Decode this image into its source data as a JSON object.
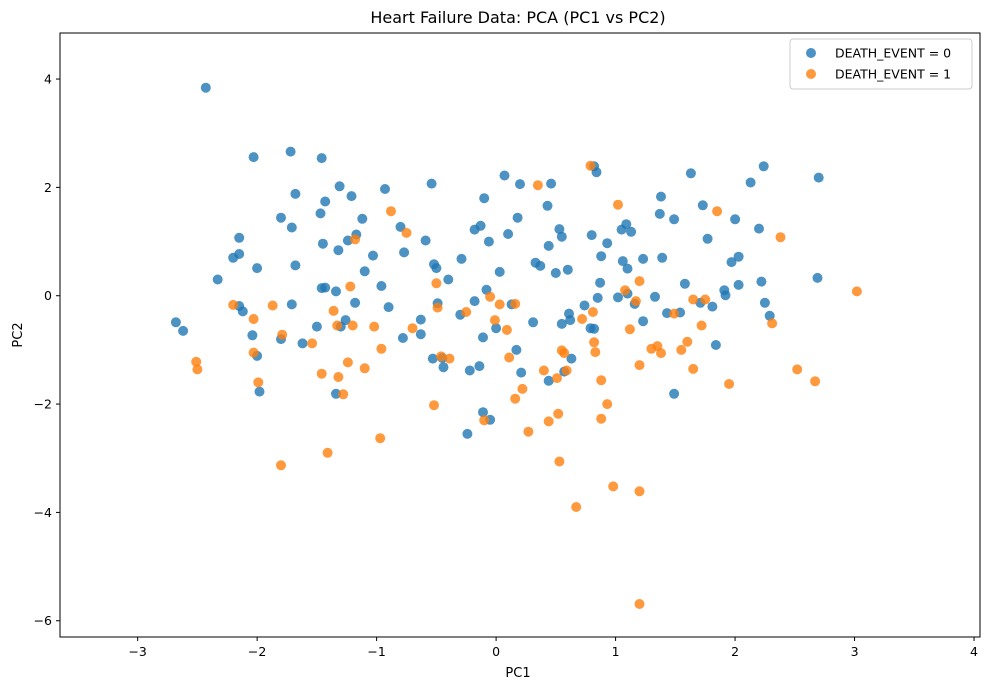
{
  "chart_data": {
    "type": "scatter",
    "title": "Heart Failure Data: PCA (PC1 vs PC2)",
    "xlabel": "PC1",
    "ylabel": "PC2",
    "xlim": [
      -3.65,
      4.05
    ],
    "ylim": [
      -6.3,
      4.85
    ],
    "x_ticks": [
      -3,
      -2,
      -1,
      0,
      1,
      2,
      3,
      4
    ],
    "y_ticks": [
      -6,
      -4,
      -2,
      0,
      2,
      4
    ],
    "grid": false,
    "legend_position": "top-right",
    "series": [
      {
        "name": "DEATH_EVENT = 0",
        "color": "#1f77b4",
        "points": [
          [
            -2.43,
            3.84
          ],
          [
            -2.03,
            2.56
          ],
          [
            -1.72,
            2.66
          ],
          [
            -1.46,
            2.54
          ],
          [
            -1.68,
            1.88
          ],
          [
            -1.31,
            2.02
          ],
          [
            -1.21,
            1.84
          ],
          [
            -0.93,
            1.97
          ],
          [
            -0.54,
            2.07
          ],
          [
            0.07,
            2.22
          ],
          [
            -0.1,
            1.8
          ],
          [
            0.2,
            2.06
          ],
          [
            0.46,
            2.07
          ],
          [
            0.82,
            2.39
          ],
          [
            0.84,
            2.28
          ],
          [
            1.38,
            1.83
          ],
          [
            1.63,
            2.26
          ],
          [
            2.24,
            2.39
          ],
          [
            2.13,
            2.09
          ],
          [
            2.7,
            2.18
          ],
          [
            -1.43,
            1.74
          ],
          [
            -1.47,
            1.52
          ],
          [
            -1.8,
            1.44
          ],
          [
            -1.71,
            1.26
          ],
          [
            -2.15,
            1.07
          ],
          [
            -2.15,
            0.77
          ],
          [
            -1.12,
            1.42
          ],
          [
            -1.17,
            1.13
          ],
          [
            -0.8,
            1.27
          ],
          [
            -0.59,
            1.02
          ],
          [
            -0.13,
            1.29
          ],
          [
            -0.18,
            1.22
          ],
          [
            0.1,
            1.14
          ],
          [
            0.18,
            1.44
          ],
          [
            0.43,
            1.66
          ],
          [
            0.53,
            1.23
          ],
          [
            0.55,
            1.09
          ],
          [
            0.8,
            1.12
          ],
          [
            0.93,
            0.97
          ],
          [
            1.05,
            1.22
          ],
          [
            1.09,
            1.32
          ],
          [
            1.13,
            1.18
          ],
          [
            1.37,
            1.51
          ],
          [
            1.49,
            1.41
          ],
          [
            1.73,
            1.67
          ],
          [
            1.77,
            1.05
          ],
          [
            1.97,
            0.62
          ],
          [
            2.0,
            1.41
          ],
          [
            2.03,
            0.72
          ],
          [
            2.2,
            1.24
          ],
          [
            -1.45,
            0.96
          ],
          [
            -1.32,
            0.84
          ],
          [
            -1.24,
            1.02
          ],
          [
            -1.03,
            0.74
          ],
          [
            -0.77,
            0.8
          ],
          [
            -0.52,
            0.58
          ],
          [
            -0.29,
            0.68
          ],
          [
            -0.06,
            1.0
          ],
          [
            0.03,
            0.44
          ],
          [
            0.44,
            0.92
          ],
          [
            0.33,
            0.61
          ],
          [
            0.37,
            0.55
          ],
          [
            0.5,
            0.42
          ],
          [
            0.6,
            0.48
          ],
          [
            0.88,
            0.73
          ],
          [
            1.06,
            0.64
          ],
          [
            1.1,
            0.5
          ],
          [
            1.23,
            0.68
          ],
          [
            1.39,
            0.7
          ],
          [
            1.58,
            0.22
          ],
          [
            1.92,
            0.01
          ],
          [
            2.03,
            0.2
          ],
          [
            2.22,
            0.26
          ],
          [
            2.29,
            -0.37
          ],
          [
            2.69,
            0.33
          ],
          [
            -2.68,
            -0.49
          ],
          [
            -2.62,
            -0.65
          ],
          [
            -2.33,
            0.3
          ],
          [
            -2.2,
            0.7
          ],
          [
            -2.15,
            -0.19
          ],
          [
            -2.12,
            -0.29
          ],
          [
            -2.04,
            -0.73
          ],
          [
            -2.0,
            0.51
          ],
          [
            -1.8,
            -0.8
          ],
          [
            -1.71,
            -0.16
          ],
          [
            -1.68,
            0.56
          ],
          [
            -1.62,
            -0.88
          ],
          [
            -1.5,
            -0.57
          ],
          [
            -1.46,
            0.14
          ],
          [
            -1.43,
            0.15
          ],
          [
            -1.34,
            0.08
          ],
          [
            -1.3,
            -0.57
          ],
          [
            -1.26,
            -0.45
          ],
          [
            -1.18,
            -0.13
          ],
          [
            -1.1,
            0.45
          ],
          [
            -0.96,
            0.18
          ],
          [
            -0.9,
            -0.21
          ],
          [
            -0.78,
            -0.78
          ],
          [
            -0.63,
            -0.71
          ],
          [
            -0.63,
            -0.44
          ],
          [
            -0.5,
            0.51
          ],
          [
            -0.49,
            -0.14
          ],
          [
            -0.4,
            0.3
          ],
          [
            -0.3,
            -0.35
          ],
          [
            -0.18,
            -0.1
          ],
          [
            -0.11,
            -0.77
          ],
          [
            -0.08,
            0.11
          ],
          [
            0.0,
            -0.6
          ],
          [
            0.13,
            -0.16
          ],
          [
            0.31,
            -0.49
          ],
          [
            0.55,
            -0.52
          ],
          [
            0.61,
            -0.33
          ],
          [
            0.62,
            -0.45
          ],
          [
            0.74,
            -0.18
          ],
          [
            0.79,
            -0.6
          ],
          [
            0.82,
            -0.61
          ],
          [
            0.85,
            -0.04
          ],
          [
            0.87,
            0.24
          ],
          [
            1.02,
            -0.03
          ],
          [
            1.1,
            0.04
          ],
          [
            1.16,
            -0.15
          ],
          [
            1.23,
            -0.47
          ],
          [
            1.33,
            -0.02
          ],
          [
            1.43,
            -0.32
          ],
          [
            1.54,
            -0.31
          ],
          [
            1.71,
            -0.13
          ],
          [
            1.81,
            -0.2
          ],
          [
            1.84,
            -0.91
          ],
          [
            1.91,
            0.1
          ],
          [
            2.25,
            -0.13
          ],
          [
            -2.0,
            -1.11
          ],
          [
            -1.98,
            -1.77
          ],
          [
            -1.34,
            -1.81
          ],
          [
            -0.45,
            -1.15
          ],
          [
            -0.53,
            -1.16
          ],
          [
            -0.44,
            -1.32
          ],
          [
            -0.22,
            -1.38
          ],
          [
            -0.14,
            -1.3
          ],
          [
            -0.11,
            -2.15
          ],
          [
            -0.05,
            -2.29
          ],
          [
            0.17,
            -1.0
          ],
          [
            0.21,
            -1.42
          ],
          [
            0.44,
            -1.57
          ],
          [
            0.57,
            -1.4
          ],
          [
            0.63,
            -1.16
          ],
          [
            1.49,
            -1.81
          ],
          [
            -0.24,
            -2.55
          ]
        ]
      },
      {
        "name": "DEATH_EVENT = 1",
        "color": "#ff7f0e",
        "points": [
          [
            -2.51,
            -1.22
          ],
          [
            -2.5,
            -1.36
          ],
          [
            -2.2,
            -0.17
          ],
          [
            -2.03,
            -0.43
          ],
          [
            -2.03,
            -1.05
          ],
          [
            -1.99,
            -1.6
          ],
          [
            -1.87,
            -0.18
          ],
          [
            -1.79,
            -0.72
          ],
          [
            -1.8,
            -3.13
          ],
          [
            -1.54,
            -0.88
          ],
          [
            -1.46,
            -1.44
          ],
          [
            -1.41,
            -2.9
          ],
          [
            -1.36,
            -0.28
          ],
          [
            -1.33,
            -0.55
          ],
          [
            -1.32,
            -1.5
          ],
          [
            -1.28,
            -1.82
          ],
          [
            -1.24,
            -1.23
          ],
          [
            -1.2,
            -0.55
          ],
          [
            -1.22,
            0.17
          ],
          [
            -1.18,
            1.04
          ],
          [
            -1.1,
            -1.34
          ],
          [
            -1.02,
            -0.57
          ],
          [
            -0.96,
            -0.98
          ],
          [
            -0.97,
            -2.63
          ],
          [
            -0.88,
            1.56
          ],
          [
            -0.75,
            1.16
          ],
          [
            -0.7,
            -0.6
          ],
          [
            -0.52,
            -2.02
          ],
          [
            -0.5,
            0.23
          ],
          [
            -0.49,
            -0.22
          ],
          [
            -0.46,
            -1.12
          ],
          [
            -0.39,
            -1.16
          ],
          [
            -0.25,
            -0.3
          ],
          [
            -0.1,
            -2.3
          ],
          [
            -0.05,
            -0.02
          ],
          [
            -0.01,
            -0.45
          ],
          [
            0.03,
            -0.16
          ],
          [
            0.09,
            -0.63
          ],
          [
            0.11,
            -1.14
          ],
          [
            0.16,
            -0.15
          ],
          [
            0.16,
            -1.9
          ],
          [
            0.22,
            -1.72
          ],
          [
            0.27,
            -2.51
          ],
          [
            0.35,
            2.04
          ],
          [
            0.4,
            -1.38
          ],
          [
            0.44,
            -2.32
          ],
          [
            0.51,
            -1.52
          ],
          [
            0.52,
            -2.18
          ],
          [
            0.53,
            -3.06
          ],
          [
            0.55,
            -1.01
          ],
          [
            0.57,
            -1.06
          ],
          [
            0.59,
            -1.38
          ],
          [
            0.67,
            -3.9
          ],
          [
            0.72,
            -0.43
          ],
          [
            0.79,
            2.4
          ],
          [
            0.81,
            -0.3
          ],
          [
            0.82,
            -0.86
          ],
          [
            0.83,
            -1.04
          ],
          [
            0.88,
            -2.27
          ],
          [
            0.88,
            -1.56
          ],
          [
            0.93,
            -2.0
          ],
          [
            0.98,
            -3.52
          ],
          [
            1.02,
            1.68
          ],
          [
            1.08,
            0.1
          ],
          [
            1.12,
            -0.62
          ],
          [
            1.17,
            -0.1
          ],
          [
            1.2,
            0.27
          ],
          [
            1.2,
            -1.28
          ],
          [
            1.2,
            -3.61
          ],
          [
            1.2,
            -5.69
          ],
          [
            1.3,
            -0.98
          ],
          [
            1.35,
            -0.93
          ],
          [
            1.38,
            -1.06
          ],
          [
            1.49,
            -0.33
          ],
          [
            1.55,
            -1.0
          ],
          [
            1.6,
            -0.85
          ],
          [
            1.65,
            -0.07
          ],
          [
            1.65,
            -1.35
          ],
          [
            1.72,
            -0.55
          ],
          [
            1.75,
            -0.07
          ],
          [
            1.85,
            1.56
          ],
          [
            1.95,
            -1.63
          ],
          [
            2.31,
            -0.51
          ],
          [
            2.38,
            1.08
          ],
          [
            2.52,
            -1.36
          ],
          [
            2.67,
            -1.58
          ],
          [
            3.02,
            0.08
          ]
        ]
      }
    ]
  }
}
